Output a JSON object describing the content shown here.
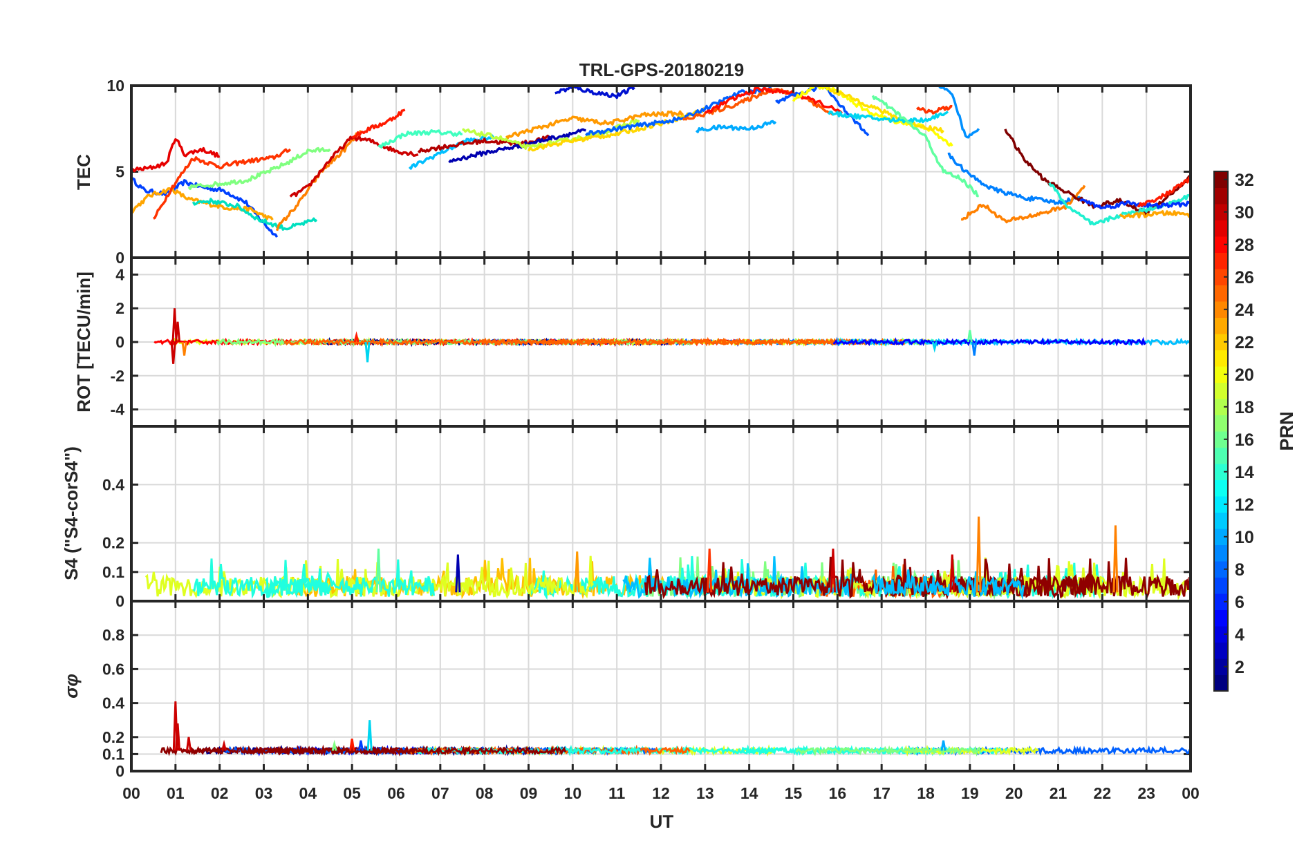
{
  "chart_data": [
    {
      "type": "line",
      "panel": "TEC",
      "title": "TRL-GPS-20180219",
      "ylabel": "TEC",
      "xlabel": "",
      "ylim": [
        0,
        10
      ],
      "yticks": [
        "0",
        "5",
        "10"
      ],
      "grid": true,
      "series": [
        {
          "prn": 5,
          "color": "#0040ff",
          "x": [
            0.0,
            0.3,
            0.8,
            1.2,
            1.6,
            2.1,
            2.6,
            3.0,
            3.3
          ],
          "y": [
            4.6,
            3.9,
            3.7,
            4.4,
            4.1,
            3.9,
            3.2,
            2.0,
            1.2
          ]
        },
        {
          "prn": 22,
          "color": "#ffa500",
          "x": [
            0.0,
            0.4,
            0.9,
            1.3,
            1.8,
            2.2,
            2.7,
            3.2
          ],
          "y": [
            2.7,
            3.6,
            4.0,
            3.4,
            3.1,
            2.9,
            2.8,
            2.2
          ]
        },
        {
          "prn": 29,
          "color": "#e60000",
          "x": [
            0.0,
            0.4,
            0.8,
            1.0,
            1.2,
            1.6,
            2.0
          ],
          "y": [
            5.1,
            5.2,
            5.5,
            7.0,
            6.0,
            6.3,
            5.9
          ]
        },
        {
          "prn": 26,
          "color": "#ff3300",
          "x": [
            0.5,
            0.9,
            1.4,
            2.0,
            2.6,
            3.2,
            3.6
          ],
          "y": [
            2.2,
            4.0,
            5.8,
            5.3,
            5.6,
            5.8,
            6.3
          ]
        },
        {
          "prn": 14,
          "color": "#00e0c0",
          "x": [
            1.4,
            1.8,
            2.4,
            2.9,
            3.5,
            4.2
          ],
          "y": [
            3.2,
            3.3,
            3.0,
            2.2,
            1.7,
            2.2
          ]
        },
        {
          "prn": 17,
          "color": "#80ff80",
          "x": [
            1.3,
            2.0,
            2.6,
            3.1,
            3.6,
            4.0,
            4.5
          ],
          "y": [
            4.1,
            4.3,
            4.5,
            5.0,
            5.6,
            6.2,
            6.3
          ]
        },
        {
          "prn": 24,
          "color": "#ff8000",
          "x": [
            3.3,
            3.8,
            4.3,
            4.8,
            5.2
          ],
          "y": [
            1.7,
            3.2,
            5.0,
            6.2,
            7.4
          ]
        },
        {
          "prn": 30,
          "color": "#cc0000",
          "x": [
            3.6,
            4.0,
            4.5,
            5.0,
            5.4,
            6.0,
            6.5
          ],
          "y": [
            3.5,
            4.1,
            5.7,
            7.0,
            6.8,
            6.2,
            6.0
          ]
        },
        {
          "prn": 27,
          "color": "#ff1a00",
          "x": [
            5.0,
            5.4,
            5.8,
            6.2
          ],
          "y": [
            7.0,
            7.5,
            7.9,
            8.6
          ]
        },
        {
          "prn": 15,
          "color": "#40ffbf",
          "x": [
            5.6,
            6.2,
            6.8,
            7.5
          ],
          "y": [
            6.4,
            7.2,
            7.3,
            7.2
          ]
        },
        {
          "prn": 12,
          "color": "#00bfff",
          "x": [
            6.3,
            7.0,
            7.6,
            8.2
          ],
          "y": [
            5.2,
            6.1,
            6.8,
            7.0
          ]
        },
        {
          "prn": 31,
          "color": "#b30000",
          "x": [
            6.5,
            7.2,
            8.0,
            8.8,
            9.5
          ],
          "y": [
            6.2,
            6.5,
            6.8,
            6.6,
            7.0
          ]
        },
        {
          "prn": 2,
          "color": "#0000b0",
          "x": [
            7.2,
            8.0,
            8.8,
            9.6,
            10.3
          ],
          "y": [
            5.6,
            6.1,
            6.5,
            7.0,
            7.4
          ]
        },
        {
          "prn": 18,
          "color": "#bfff40",
          "x": [
            7.5,
            8.3,
            9.0,
            9.8,
            10.6,
            11.5
          ],
          "y": [
            7.4,
            7.0,
            6.4,
            6.8,
            7.2,
            8.0
          ]
        },
        {
          "prn": 23,
          "color": "#ff9900",
          "x": [
            8.5,
            9.3,
            10.0,
            10.8,
            11.6,
            12.5
          ],
          "y": [
            7.0,
            7.6,
            8.1,
            7.8,
            8.3,
            8.4
          ]
        },
        {
          "prn": 20,
          "color": "#ffd700",
          "x": [
            9.0,
            10.0,
            11.0,
            12.0,
            13.0
          ],
          "y": [
            6.3,
            6.8,
            7.2,
            7.8,
            8.6
          ]
        },
        {
          "prn": 3,
          "color": "#0010d0",
          "x": [
            9.6,
            10.0,
            10.5,
            11.0,
            11.4
          ],
          "y": [
            9.6,
            9.9,
            9.6,
            9.4,
            9.9
          ]
        },
        {
          "prn": 7,
          "color": "#0060ff",
          "x": [
            10.3,
            11.0,
            11.8,
            12.5,
            13.2,
            13.8,
            14.5
          ],
          "y": [
            7.2,
            7.5,
            7.8,
            8.1,
            8.9,
            9.6,
            9.8
          ]
        },
        {
          "prn": 11,
          "color": "#00aaff",
          "x": [
            12.8,
            13.4,
            14.0,
            14.6
          ],
          "y": [
            7.4,
            7.6,
            7.5,
            7.9
          ]
        },
        {
          "prn": 25,
          "color": "#ff5500",
          "x": [
            12.5,
            13.2,
            13.8,
            14.5,
            15.2,
            15.9
          ],
          "y": [
            8.0,
            8.5,
            9.0,
            9.8,
            9.4,
            8.3
          ]
        },
        {
          "prn": 28,
          "color": "#ff0d00",
          "x": [
            13.0,
            13.6,
            14.2,
            14.9,
            15.6,
            16.1
          ],
          "y": [
            8.4,
            9.2,
            9.8,
            9.6,
            9.0,
            8.4
          ]
        },
        {
          "prn": 6,
          "color": "#0050ff",
          "x": [
            14.6,
            15.2,
            15.7,
            16.2,
            16.7
          ],
          "y": [
            9.0,
            9.6,
            10.0,
            8.5,
            7.1
          ]
        },
        {
          "prn": 19,
          "color": "#ffff00",
          "x": [
            15.0,
            15.5,
            16.0,
            16.6,
            17.2,
            18.0,
            18.6
          ],
          "y": [
            9.2,
            10.0,
            9.7,
            8.6,
            8.0,
            7.6,
            6.5
          ]
        },
        {
          "prn": 21,
          "color": "#ffe000",
          "x": [
            15.8,
            16.5,
            17.2,
            17.8,
            18.4
          ],
          "y": [
            9.8,
            9.1,
            8.3,
            7.7,
            7.4
          ]
        },
        {
          "prn": 13,
          "color": "#00d5f0",
          "x": [
            15.8,
            16.5,
            17.2,
            18.0,
            18.5
          ],
          "y": [
            8.4,
            8.2,
            8.0,
            8.0,
            8.5
          ]
        },
        {
          "prn": 26,
          "color": "#ff3300",
          "x": [
            17.8,
            18.2,
            18.6
          ],
          "y": [
            8.6,
            8.5,
            8.8
          ]
        },
        {
          "prn": 16,
          "color": "#60ffa0",
          "x": [
            16.8,
            17.4,
            18.0,
            18.4,
            18.8,
            19.2
          ],
          "y": [
            9.4,
            8.3,
            7.0,
            5.0,
            4.6,
            3.6
          ]
        },
        {
          "prn": 10,
          "color": "#0090ff",
          "x": [
            18.3,
            18.6,
            18.9,
            19.2
          ],
          "y": [
            9.9,
            9.6,
            7.0,
            7.5
          ]
        },
        {
          "prn": 9,
          "color": "#0080ff",
          "x": [
            18.5,
            19.0,
            19.5,
            20.2,
            21.0,
            21.5
          ],
          "y": [
            6.0,
            4.8,
            4.0,
            3.5,
            3.2,
            3.5
          ]
        },
        {
          "prn": 24,
          "color": "#ff8000",
          "x": [
            18.8,
            19.3,
            19.8,
            20.5,
            21.2,
            21.6
          ],
          "y": [
            2.2,
            3.1,
            2.1,
            2.5,
            3.0,
            4.2
          ]
        },
        {
          "prn": 32,
          "color": "#800000",
          "x": [
            19.8,
            20.2,
            20.7,
            21.2,
            21.8,
            22.4,
            23.0,
            23.6,
            24.0
          ],
          "y": [
            7.5,
            5.8,
            4.5,
            3.8,
            3.0,
            3.3,
            2.6,
            3.8,
            4.7
          ]
        },
        {
          "prn": 13,
          "color": "#20f0d0",
          "x": [
            20.8,
            21.2,
            21.8,
            22.3,
            23.0,
            23.6,
            24.0
          ],
          "y": [
            4.4,
            3.0,
            1.9,
            2.4,
            2.8,
            3.2,
            3.6
          ]
        },
        {
          "prn": 4,
          "color": "#0030ff",
          "x": [
            21.5,
            22.0,
            22.6,
            23.2,
            23.8,
            24.0
          ],
          "y": [
            3.4,
            2.9,
            3.2,
            3.0,
            3.1,
            3.2
          ]
        },
        {
          "prn": 22,
          "color": "#ffa500",
          "x": [
            22.4,
            23.0,
            23.5,
            24.0
          ],
          "y": [
            2.4,
            2.5,
            2.6,
            2.5
          ]
        },
        {
          "prn": 27,
          "color": "#ff1a00",
          "x": [
            22.8,
            23.4,
            24.0
          ],
          "y": [
            3.0,
            3.6,
            4.6
          ]
        }
      ]
    },
    {
      "type": "line",
      "panel": "ROT",
      "ylabel": "ROT [TECU/min]",
      "ylim": [
        -5,
        5
      ],
      "yticks": [
        "-4",
        "-2",
        "0",
        "2",
        "4"
      ],
      "grid": true,
      "noise_level": 0.12,
      "spikes": [
        {
          "x": 0.98,
          "y": 2.0,
          "color": "#cc0000"
        },
        {
          "x": 0.95,
          "y": -1.3,
          "color": "#cc0000"
        },
        {
          "x": 1.05,
          "y": 1.2,
          "color": "#cc0000"
        },
        {
          "x": 1.2,
          "y": -0.8,
          "color": "#ff8000"
        },
        {
          "x": 5.35,
          "y": -1.2,
          "color": "#00d5f0"
        },
        {
          "x": 5.1,
          "y": 0.4,
          "color": "#ff1a00"
        },
        {
          "x": 19.1,
          "y": -0.8,
          "color": "#0080ff"
        },
        {
          "x": 19.0,
          "y": 0.7,
          "color": "#60ffa0"
        },
        {
          "x": 18.2,
          "y": -0.4,
          "color": "#00d5f0"
        }
      ]
    },
    {
      "type": "line",
      "panel": "S4",
      "ylabel": "S4 (\"S4-corS4\")",
      "ylim": [
        0,
        0.6
      ],
      "yticks": [
        "0",
        "0.1",
        "0.2",
        "0.4"
      ],
      "grid": true,
      "baseline": 0.04,
      "spikes": [
        {
          "x": 19.2,
          "y": 0.29,
          "color": "#ff8000"
        },
        {
          "x": 22.3,
          "y": 0.26,
          "color": "#ff8000"
        },
        {
          "x": 5.6,
          "y": 0.18,
          "color": "#60ffa0"
        },
        {
          "x": 13.1,
          "y": 0.18,
          "color": "#ff3300"
        },
        {
          "x": 15.9,
          "y": 0.18,
          "color": "#cc0000"
        },
        {
          "x": 7.4,
          "y": 0.16,
          "color": "#0000b0"
        },
        {
          "x": 10.1,
          "y": 0.17,
          "color": "#ff9900"
        },
        {
          "x": 18.6,
          "y": 0.16,
          "color": "#cc0000"
        }
      ]
    },
    {
      "type": "line",
      "panel": "sigma_phi",
      "ylabel": "σφ",
      "xlabel": "UT",
      "ylim": [
        0,
        1
      ],
      "yticks": [
        "0",
        "0.1",
        "0.2",
        "0.4",
        "0.6",
        "0.8"
      ],
      "grid": true,
      "baseline": 0.12,
      "spikes": [
        {
          "x": 1.0,
          "y": 0.41,
          "color": "#cc0000"
        },
        {
          "x": 1.05,
          "y": 0.28,
          "color": "#cc0000"
        },
        {
          "x": 1.3,
          "y": 0.2,
          "color": "#cc0000"
        },
        {
          "x": 5.4,
          "y": 0.3,
          "color": "#00d5f0"
        },
        {
          "x": 5.0,
          "y": 0.19,
          "color": "#ff1a00"
        },
        {
          "x": 5.2,
          "y": 0.18,
          "color": "#0040ff"
        },
        {
          "x": 18.4,
          "y": 0.18,
          "color": "#00aaff"
        },
        {
          "x": 2.1,
          "y": 0.16,
          "color": "#cc0000"
        },
        {
          "x": 4.6,
          "y": 0.16,
          "color": "#80ff80"
        }
      ]
    }
  ],
  "xaxis": {
    "range": [
      0,
      24
    ],
    "ticks": [
      "00",
      "01",
      "02",
      "03",
      "04",
      "05",
      "06",
      "07",
      "08",
      "09",
      "10",
      "11",
      "12",
      "13",
      "14",
      "15",
      "16",
      "17",
      "18",
      "19",
      "20",
      "21",
      "22",
      "23",
      "00"
    ],
    "label": "UT"
  },
  "colorbar": {
    "label": "PRN",
    "range": [
      1,
      32
    ],
    "ticks": [
      "2",
      "4",
      "6",
      "8",
      "10",
      "12",
      "14",
      "16",
      "18",
      "20",
      "22",
      "24",
      "26",
      "28",
      "30",
      "32"
    ]
  }
}
